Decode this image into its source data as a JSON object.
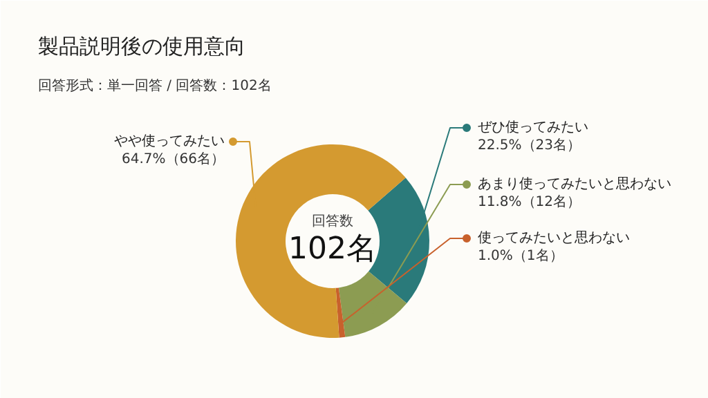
{
  "chart_data": {
    "type": "donut",
    "title": "製品説明後の使用意向",
    "subtitle": "回答形式：単一回答 / 回答数：102名",
    "annotations": [
      "回答数",
      "102名"
    ],
    "legend": "right",
    "categories": [
      "ぜひ使ってみたい",
      "あまり使ってみたいと思わない",
      "使ってみたいと思わない",
      "やや使ってみたい"
    ],
    "values": [
      22.5,
      11.8,
      1.0,
      64.7
    ],
    "colors": [
      "#2a7a7a",
      "#8c9c52",
      "#c8612c",
      "#d49a30"
    ],
    "value_labels": [
      "22.5%（23名）",
      "11.8%（12名）",
      "1.0%（1名）",
      "64.7%（66名）"
    ]
  }
}
